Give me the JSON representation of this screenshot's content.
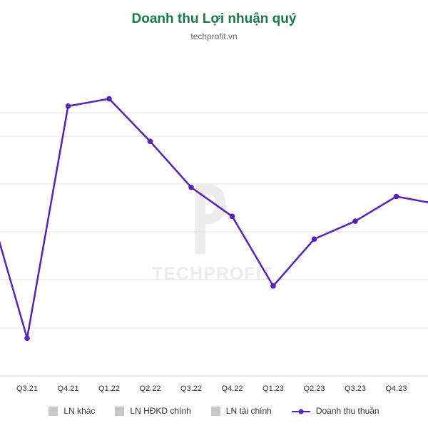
{
  "chart_data": {
    "type": "line",
    "title": "Doanh thu Lợi nhuận quý",
    "subtitle": "techprofit.vn",
    "watermark": "TECHPROFIT",
    "categories": [
      "Q3.21",
      "Q4.21",
      "Q1.22",
      "Q2.22",
      "Q3.22",
      "Q4.22",
      "Q1.23",
      "Q2.23",
      "Q3.23",
      "Q4.23"
    ],
    "series": [
      {
        "name": "Doanh thu thuần",
        "color": "#5b21b6",
        "values": [
          0.75,
          5.55,
          5.7,
          4.82,
          3.87,
          3.27,
          1.83,
          2.8,
          3.17,
          3.68
        ]
      }
    ],
    "grid": true,
    "legend_position": "bottom",
    "legend": [
      {
        "label": "LN khác",
        "type": "box",
        "color": "#c8c8c8"
      },
      {
        "label": "LN HĐKD chính",
        "type": "box",
        "color": "#c8c8c8"
      },
      {
        "label": "LN tài chính",
        "type": "box",
        "color": "#c8c8c8"
      },
      {
        "label": "Doanh thu thuần",
        "type": "line",
        "color": "#5b21b6"
      }
    ]
  }
}
